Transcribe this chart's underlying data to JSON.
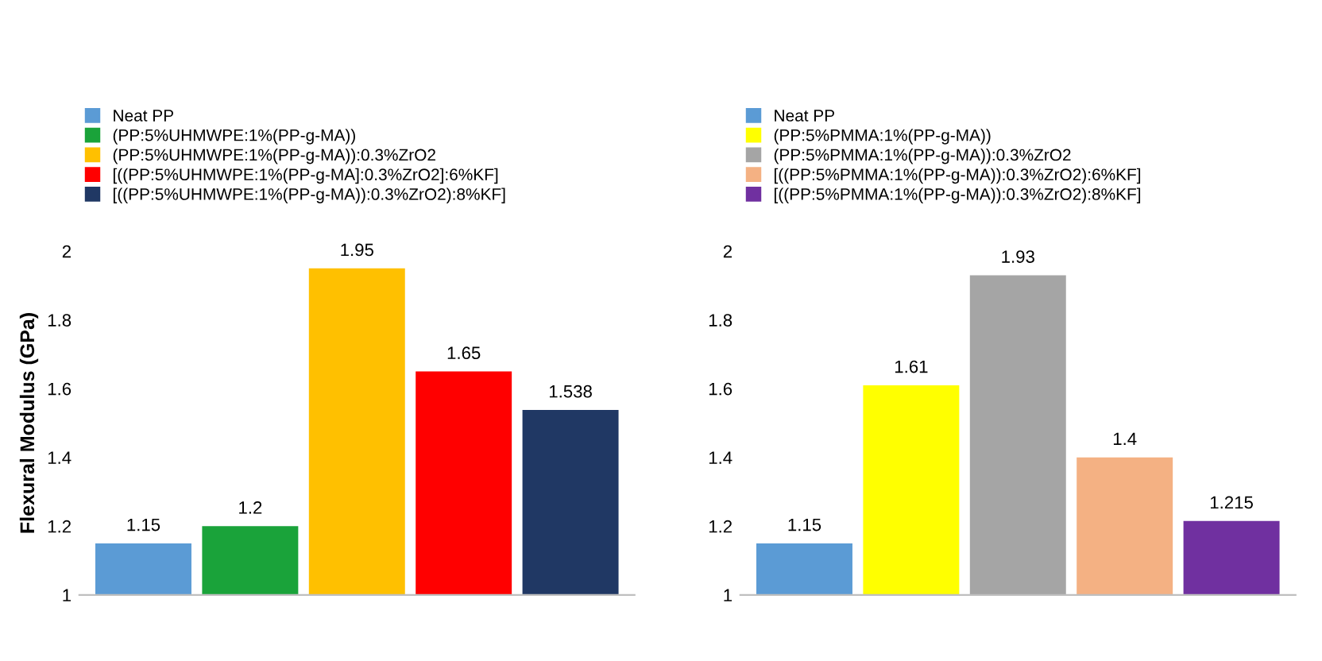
{
  "chart_data": [
    {
      "type": "bar",
      "ylabel": "Flexural Modulus (GPa)",
      "categories": [
        null,
        null,
        null,
        null,
        null
      ],
      "ylim": [
        1,
        2
      ],
      "yticks": [
        1,
        1.2,
        1.4,
        1.6,
        1.8,
        2
      ],
      "grid": false,
      "legend": "top",
      "data_labels": true,
      "tick_labels": "y",
      "series": [
        {
          "name": "Neat PP",
          "color": "#5b9bd5",
          "values": [
            1.15,
            null,
            null,
            null,
            null
          ]
        },
        {
          "name": "(PP:5%UHMWPE:1%(PP-g-MA))",
          "color": "#1aa33a",
          "values": [
            null,
            1.2,
            null,
            null,
            null
          ]
        },
        {
          "name": "(PP:5%UHMWPE:1%(PP-g-MA)):0.3%ZrO2",
          "color": "#ffc000",
          "values": [
            null,
            null,
            1.95,
            null,
            null
          ]
        },
        {
          "name": "[((PP:5%UHMWPE:1%(PP-g-MA]:0.3%ZrO2]:6%KF]",
          "color": "#ff0000",
          "values": [
            null,
            null,
            null,
            1.65,
            null
          ]
        },
        {
          "name": "[((PP:5%UHMWPE:1%(PP-g-MA)):0.3%ZrO2):8%KF]",
          "color": "#203864",
          "values": [
            null,
            null,
            null,
            null,
            1.538
          ]
        }
      ]
    },
    {
      "type": "bar",
      "categories": [
        null,
        null,
        null,
        null,
        null
      ],
      "ylim": [
        1,
        2
      ],
      "yticks": [
        1,
        1.2,
        1.4,
        1.6,
        1.8,
        2
      ],
      "grid": false,
      "legend": "top",
      "data_labels": true,
      "tick_labels": "y",
      "series": [
        {
          "name": "Neat PP",
          "color": "#5b9bd5",
          "values": [
            1.15,
            null,
            null,
            null,
            null
          ]
        },
        {
          "name": "(PP:5%PMMA:1%(PP-g-MA))",
          "color": "#ffff00",
          "values": [
            null,
            1.61,
            null,
            null,
            null
          ]
        },
        {
          "name": "(PP:5%PMMA:1%(PP-g-MA)):0.3%ZrO2",
          "color": "#a5a5a5",
          "values": [
            null,
            null,
            1.93,
            null,
            null
          ]
        },
        {
          "name": "[((PP:5%PMMA:1%(PP-g-MA)):0.3%ZrO2):6%KF]",
          "color": "#f4b183",
          "values": [
            null,
            null,
            null,
            1.4,
            null
          ]
        },
        {
          "name": "[((PP:5%PMMA:1%(PP-g-MA)):0.3%ZrO2):8%KF]",
          "color": "#7030a0",
          "values": [
            null,
            null,
            null,
            null,
            1.215
          ]
        }
      ]
    }
  ]
}
